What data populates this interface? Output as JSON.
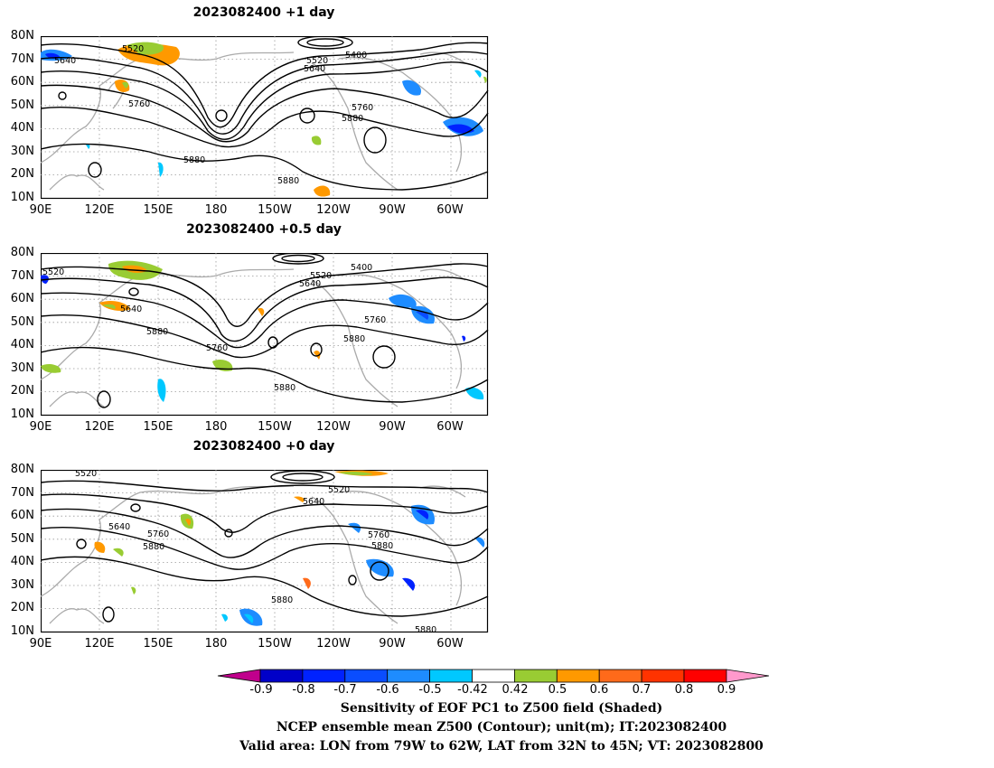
{
  "panels": [
    {
      "title": "2023082400  +1 day",
      "contour_labels": [
        "5520",
        "5640",
        "5520",
        "5640",
        "5400",
        "5760",
        "5760",
        "5880",
        "5880",
        "5880"
      ]
    },
    {
      "title": "2023082400  +0.5 day",
      "contour_labels": [
        "5520",
        "5520",
        "5640",
        "5400",
        "5640",
        "5760",
        "5880",
        "5760",
        "5880",
        "5880"
      ]
    },
    {
      "title": "2023082400  +0 day",
      "contour_labels": [
        "5520",
        "5520",
        "5640",
        "5640",
        "5760",
        "5880",
        "5760",
        "5880",
        "5880",
        "5880"
      ]
    }
  ],
  "lat_ticks": [
    "80N",
    "70N",
    "60N",
    "50N",
    "40N",
    "30N",
    "20N",
    "10N"
  ],
  "lon_ticks": [
    "90E",
    "120E",
    "150E",
    "180",
    "150W",
    "120W",
    "90W",
    "60W"
  ],
  "colorbar": {
    "labels": [
      "-0.9",
      "-0.8",
      "-0.7",
      "-0.6",
      "-0.5",
      "-0.42",
      "0.42",
      "0.5",
      "0.6",
      "0.7",
      "0.8",
      "0.9"
    ],
    "colors": [
      "#c0008c",
      "#0000c8",
      "#0022ff",
      "#0a4dff",
      "#1e8cff",
      "#00c8ff",
      "#ffffff",
      "#99cc33",
      "#ff9900",
      "#ff6a1a",
      "#ff3300",
      "#ff0000",
      "#ff99cc"
    ]
  },
  "caption": {
    "line1": "Sensitivity of EOF PC1 to Z500 field (Shaded)",
    "line2": "NCEP ensemble mean Z500 (Contour); unit(m); IT:2023082400",
    "line3": "Valid area: LON from 79W to 62W, LAT from 32N to 45N; VT: 2023082800"
  }
}
